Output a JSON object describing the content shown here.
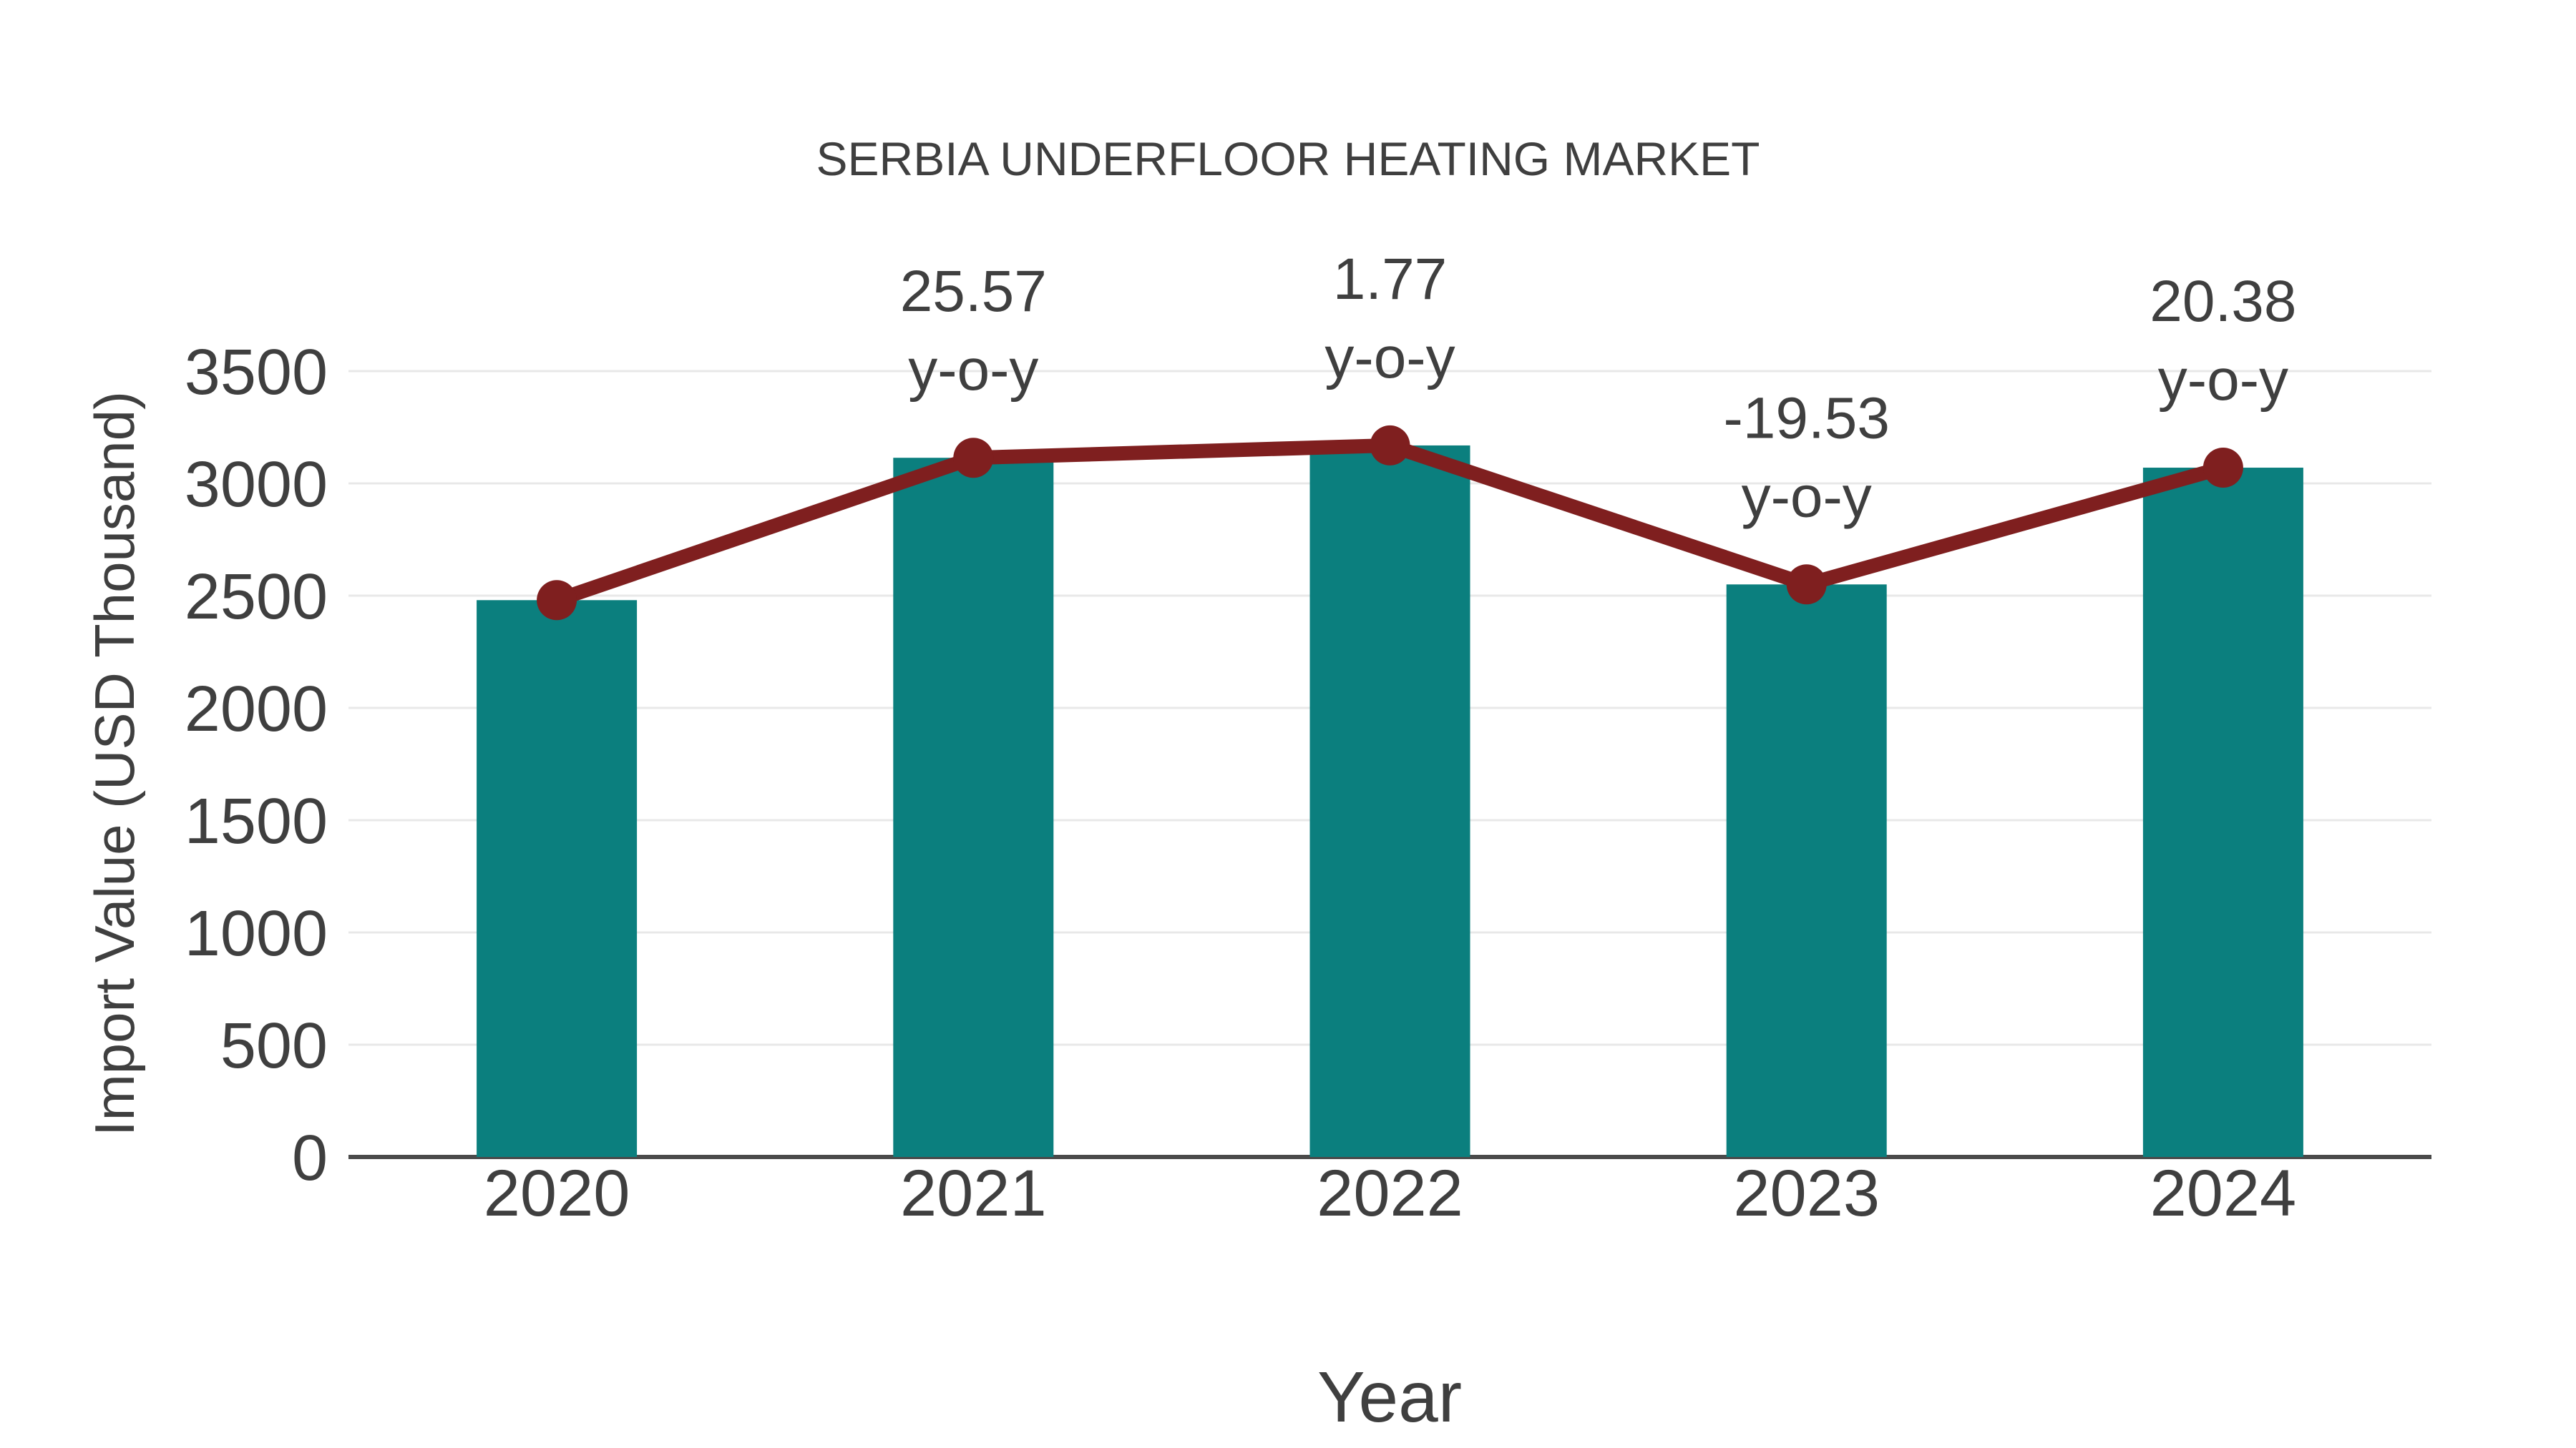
{
  "chart_data": {
    "type": "bar+line",
    "title": "SERBIA UNDERFLOOR HEATING MARKET",
    "xlabel": "Year",
    "ylabel": "Import Value (USD Thousand)",
    "categories": [
      "2020",
      "2021",
      "2022",
      "2023",
      "2024"
    ],
    "series": [
      {
        "name": "Import Value",
        "type": "bar",
        "color": "#0b7f7e",
        "values": [
          2480,
          3114,
          3169,
          2550,
          3070
        ]
      },
      {
        "name": "y-o-y trend",
        "type": "line",
        "color": "#7f1f1f",
        "values": [
          2480,
          3114,
          3169,
          2550,
          3070
        ]
      }
    ],
    "annotations": [
      {
        "category": "2021",
        "value_label": "25.57",
        "suffix_label": "y-o-y"
      },
      {
        "category": "2022",
        "value_label": "1.77",
        "suffix_label": "y-o-y"
      },
      {
        "category": "2023",
        "value_label": "-19.53",
        "suffix_label": "y-o-y"
      },
      {
        "category": "2024",
        "value_label": "20.38",
        "suffix_label": "y-o-y"
      }
    ],
    "y_ticks": [
      0,
      500,
      1000,
      1500,
      2000,
      2500,
      3000,
      3500
    ],
    "ylim": [
      0,
      3500
    ],
    "grid": true,
    "legend_position": "none",
    "colors": {
      "bar": "#0b7f7e",
      "line": "#7f1f1f",
      "marker": "#7f1f1f",
      "grid": "#e8e8e8",
      "axis": "#4a4a4a",
      "text": "#3f3f3f",
      "background": "#ffffff"
    }
  }
}
